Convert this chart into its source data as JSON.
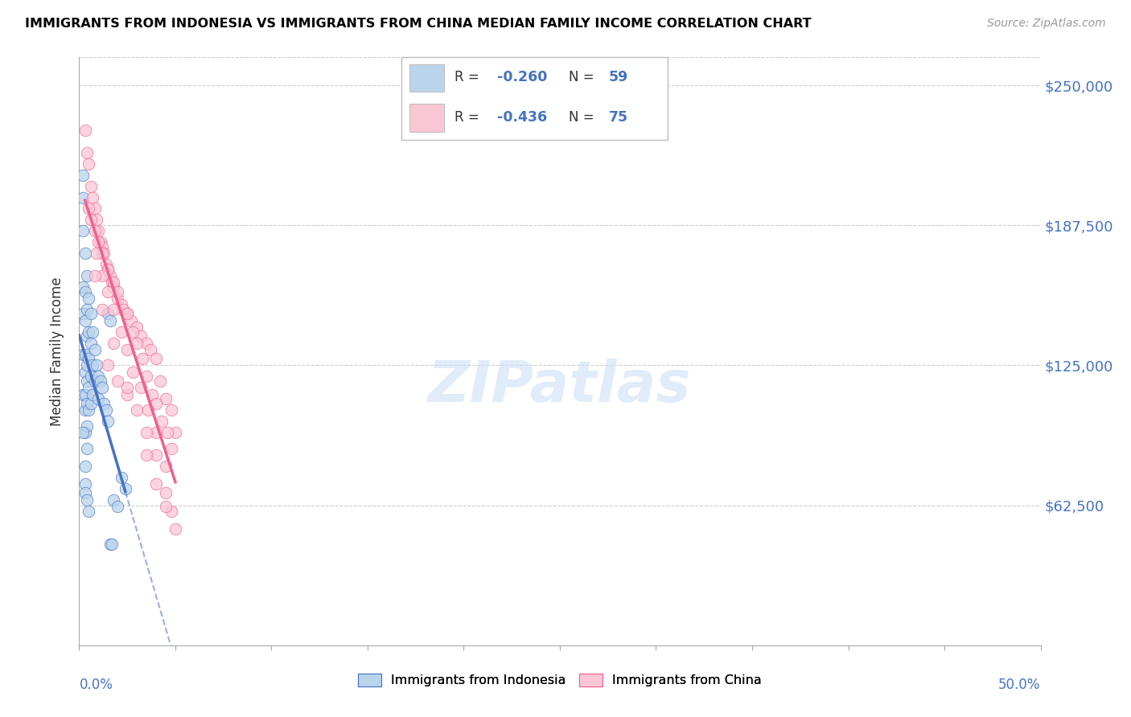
{
  "title": "IMMIGRANTS FROM INDONESIA VS IMMIGRANTS FROM CHINA MEDIAN FAMILY INCOME CORRELATION CHART",
  "source": "Source: ZipAtlas.com",
  "ylabel": "Median Family Income",
  "ytick_labels": [
    "$62,500",
    "$125,000",
    "$187,500",
    "$250,000"
  ],
  "ytick_values": [
    62500,
    125000,
    187500,
    250000
  ],
  "ylim": [
    0,
    262500
  ],
  "xlim": [
    0,
    0.5
  ],
  "legend_r1": "-0.260",
  "legend_n1": "59",
  "legend_r2": "-0.436",
  "legend_n2": "75",
  "watermark": "ZIPatlas",
  "color_indonesia": "#bad4eb",
  "color_china": "#f9c6d4",
  "line_color_indonesia": "#4472c4",
  "line_color_china": "#f06090",
  "indonesia_points_x": [
    0.002,
    0.002,
    0.002,
    0.002,
    0.002,
    0.002,
    0.002,
    0.003,
    0.003,
    0.003,
    0.003,
    0.003,
    0.003,
    0.003,
    0.003,
    0.004,
    0.004,
    0.004,
    0.004,
    0.004,
    0.004,
    0.004,
    0.005,
    0.005,
    0.005,
    0.005,
    0.005,
    0.006,
    0.006,
    0.006,
    0.006,
    0.007,
    0.007,
    0.007,
    0.008,
    0.008,
    0.009,
    0.01,
    0.01,
    0.011,
    0.012,
    0.013,
    0.014,
    0.015,
    0.016,
    0.017,
    0.018,
    0.02,
    0.022,
    0.024,
    0.002,
    0.003,
    0.003,
    0.004,
    0.015,
    0.016,
    0.003,
    0.004,
    0.005
  ],
  "indonesia_points_y": [
    210000,
    200000,
    185000,
    160000,
    148000,
    130000,
    112000,
    175000,
    158000,
    145000,
    130000,
    122000,
    112000,
    105000,
    95000,
    165000,
    150000,
    138000,
    125000,
    118000,
    108000,
    98000,
    155000,
    140000,
    128000,
    115000,
    105000,
    148000,
    135000,
    120000,
    108000,
    140000,
    125000,
    112000,
    132000,
    118000,
    125000,
    120000,
    110000,
    118000,
    115000,
    108000,
    105000,
    100000,
    45000,
    45000,
    65000,
    62000,
    75000,
    70000,
    95000,
    80000,
    72000,
    88000,
    148000,
    145000,
    68000,
    65000,
    60000
  ],
  "china_points_x": [
    0.003,
    0.004,
    0.005,
    0.006,
    0.007,
    0.008,
    0.009,
    0.01,
    0.011,
    0.012,
    0.013,
    0.014,
    0.015,
    0.016,
    0.017,
    0.018,
    0.02,
    0.022,
    0.025,
    0.027,
    0.03,
    0.032,
    0.035,
    0.037,
    0.04,
    0.042,
    0.045,
    0.048,
    0.05,
    0.005,
    0.008,
    0.01,
    0.012,
    0.015,
    0.018,
    0.02,
    0.023,
    0.025,
    0.028,
    0.03,
    0.033,
    0.035,
    0.038,
    0.04,
    0.043,
    0.046,
    0.048,
    0.006,
    0.009,
    0.012,
    0.015,
    0.018,
    0.022,
    0.025,
    0.028,
    0.032,
    0.036,
    0.04,
    0.045,
    0.015,
    0.02,
    0.025,
    0.03,
    0.035,
    0.04,
    0.045,
    0.008,
    0.012,
    0.018,
    0.025,
    0.035,
    0.04,
    0.048,
    0.05,
    0.045
  ],
  "china_points_y": [
    230000,
    220000,
    215000,
    205000,
    200000,
    195000,
    190000,
    185000,
    180000,
    178000,
    175000,
    170000,
    168000,
    165000,
    162000,
    160000,
    155000,
    152000,
    148000,
    145000,
    142000,
    138000,
    135000,
    132000,
    128000,
    118000,
    110000,
    105000,
    95000,
    195000,
    185000,
    180000,
    175000,
    168000,
    162000,
    158000,
    150000,
    148000,
    140000,
    135000,
    128000,
    120000,
    112000,
    108000,
    100000,
    95000,
    88000,
    190000,
    175000,
    165000,
    158000,
    150000,
    140000,
    132000,
    122000,
    115000,
    105000,
    95000,
    80000,
    125000,
    118000,
    112000,
    105000,
    95000,
    85000,
    68000,
    165000,
    150000,
    135000,
    115000,
    85000,
    72000,
    60000,
    52000,
    62000
  ]
}
